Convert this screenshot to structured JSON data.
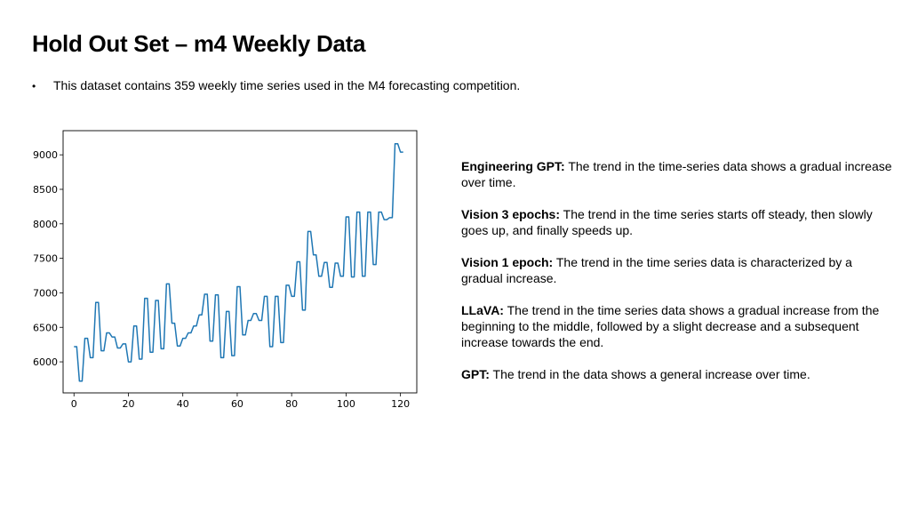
{
  "slide": {
    "title": "Hold Out Set – m4 Weekly Data",
    "bullet": "This dataset contains 359 weekly time series used in the M4 forecasting competition."
  },
  "chart_data": {
    "type": "line",
    "title": "",
    "xlabel": "",
    "ylabel": "",
    "xlim": [
      -4,
      126
    ],
    "ylim": [
      5550,
      9350
    ],
    "x_ticks": [
      0,
      20,
      40,
      60,
      80,
      100,
      120
    ],
    "y_ticks": [
      6000,
      6500,
      7000,
      7500,
      8000,
      8500,
      9000
    ],
    "series": [
      {
        "name": "series",
        "color": "#1f77b4",
        "x": [
          0,
          1,
          2,
          3,
          4,
          5,
          6,
          7,
          8,
          9,
          10,
          11,
          12,
          13,
          14,
          15,
          16,
          17,
          18,
          19,
          20,
          21,
          22,
          23,
          24,
          25,
          26,
          27,
          28,
          29,
          30,
          31,
          32,
          33,
          34,
          35,
          36,
          37,
          38,
          39,
          40,
          41,
          42,
          43,
          44,
          45,
          46,
          47,
          48,
          49,
          50,
          51,
          52,
          53,
          54,
          55,
          56,
          57,
          58,
          59,
          60,
          61,
          62,
          63,
          64,
          65,
          66,
          67,
          68,
          69,
          70,
          71,
          72,
          73,
          74,
          75,
          76,
          77,
          78,
          79,
          80,
          81,
          82,
          83,
          84,
          85,
          86,
          87,
          88,
          89,
          90,
          91,
          92,
          93,
          94,
          95,
          96,
          97,
          98,
          99,
          100,
          101,
          102,
          103,
          104,
          105,
          106,
          107,
          108,
          109,
          110,
          111,
          112,
          113,
          114,
          115,
          116,
          117,
          118,
          119,
          120,
          121
        ],
        "values": [
          6220,
          6220,
          5720,
          5720,
          6340,
          6340,
          6060,
          6060,
          6860,
          6860,
          6160,
          6160,
          6420,
          6420,
          6360,
          6360,
          6200,
          6200,
          6260,
          6260,
          6000,
          6000,
          6520,
          6520,
          6040,
          6040,
          6920,
          6920,
          6140,
          6140,
          6890,
          6890,
          6190,
          6190,
          7130,
          7130,
          6560,
          6560,
          6230,
          6230,
          6340,
          6340,
          6420,
          6420,
          6520,
          6520,
          6680,
          6680,
          6980,
          6980,
          6300,
          6300,
          6970,
          6970,
          6060,
          6060,
          6730,
          6730,
          6090,
          6090,
          7090,
          7090,
          6390,
          6390,
          6600,
          6600,
          6700,
          6700,
          6600,
          6600,
          6950,
          6950,
          6220,
          6220,
          6950,
          6950,
          6280,
          6280,
          7110,
          7110,
          6950,
          6950,
          7450,
          7450,
          6750,
          6750,
          7890,
          7890,
          7550,
          7550,
          7240,
          7240,
          7440,
          7440,
          7080,
          7080,
          7430,
          7430,
          7240,
          7240,
          8100,
          8100,
          7230,
          7230,
          8170,
          8170,
          7240,
          7240,
          8170,
          8170,
          7410,
          7410,
          8170,
          8170,
          8060,
          8060,
          8090,
          8090,
          9160,
          9160,
          9040,
          9040
        ]
      }
    ]
  },
  "notes": [
    {
      "label": "Engineering GPT:",
      "text": " The trend in the time-series data shows a gradual increase over time."
    },
    {
      "label": "Vision 3 epochs:",
      "text": " The trend in the time series starts off steady, then slowly goes up, and finally speeds up."
    },
    {
      "label": "Vision 1 epoch:",
      "text": " The trend in the time series data is characterized by a gradual increase."
    },
    {
      "label": "LLaVA:",
      "text": " The trend in the time series data shows a gradual increase from the beginning to the middle, followed by a slight decrease and a subsequent increase towards the end."
    },
    {
      "label": "GPT:",
      "text": " The trend in the data shows a general increase over time."
    }
  ]
}
